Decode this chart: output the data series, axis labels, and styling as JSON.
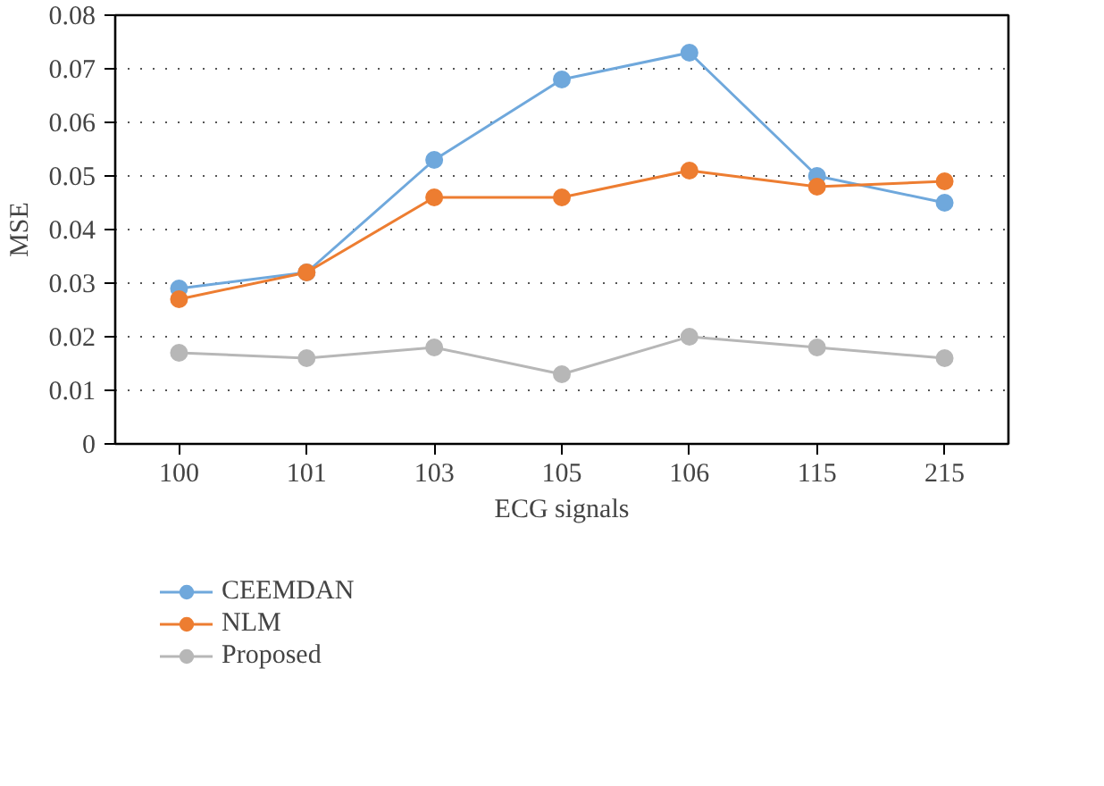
{
  "chart_data": {
    "type": "line",
    "xlabel": "ECG signals",
    "ylabel": "MSE",
    "categories": [
      "100",
      "101",
      "103",
      "105",
      "106",
      "115",
      "215"
    ],
    "series": [
      {
        "name": "CEEMDAN",
        "color": "#6fa8dc",
        "values": [
          0.029,
          0.032,
          0.053,
          0.068,
          0.073,
          0.05,
          0.045
        ]
      },
      {
        "name": "NLM",
        "color": "#ed7d31",
        "values": [
          0.027,
          0.032,
          0.046,
          0.046,
          0.051,
          0.048,
          0.049
        ]
      },
      {
        "name": "Proposed",
        "color": "#b7b7b7",
        "values": [
          0.017,
          0.016,
          0.018,
          0.013,
          0.02,
          0.018,
          0.016
        ]
      }
    ],
    "ylim": [
      0,
      0.08
    ],
    "yticks": [
      {
        "value": 0,
        "label": "0"
      },
      0.01,
      0.02,
      0.03,
      0.04,
      0.05,
      0.06,
      0.07,
      0.08
    ],
    "grid": "y",
    "legend": "bottom",
    "marker": "circle",
    "line_style": "solid"
  }
}
